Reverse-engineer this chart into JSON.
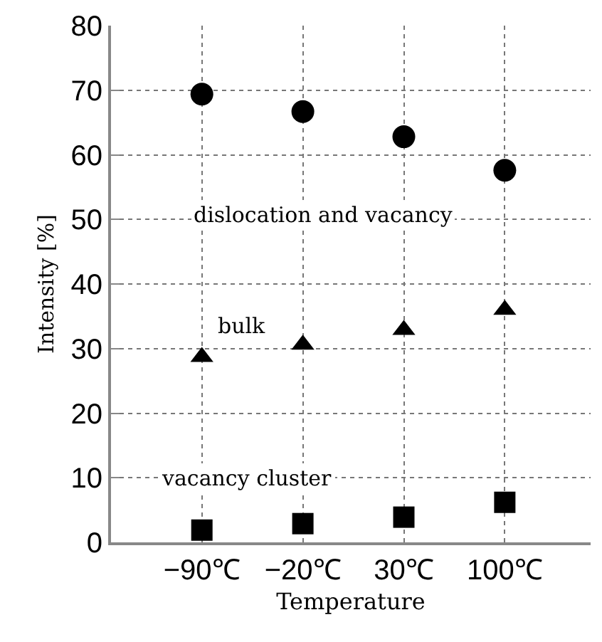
{
  "chart_data": {
    "type": "scatter",
    "xlabel": "Temperature",
    "ylabel": "Intensity [%]",
    "categories": [
      "−90℃",
      "−20℃",
      "30℃",
      "100℃"
    ],
    "series": [
      {
        "name": "dislocation and vacancy",
        "color": "#000000",
        "marker": "circle",
        "values": [
          69.4,
          66.7,
          62.8,
          57.6
        ]
      },
      {
        "name": "bulk",
        "color": "#000000",
        "marker": "triangle",
        "values": [
          28.7,
          30.6,
          32.9,
          36.0
        ]
      },
      {
        "name": "vacancy cluster",
        "color": "#000000",
        "marker": "square",
        "values": [
          1.9,
          2.9,
          3.9,
          6.2
        ]
      }
    ],
    "ylim": [
      0,
      80
    ],
    "yticks": [
      0,
      10,
      20,
      30,
      40,
      50,
      60,
      70,
      80
    ],
    "grid": true,
    "legend": false
  }
}
